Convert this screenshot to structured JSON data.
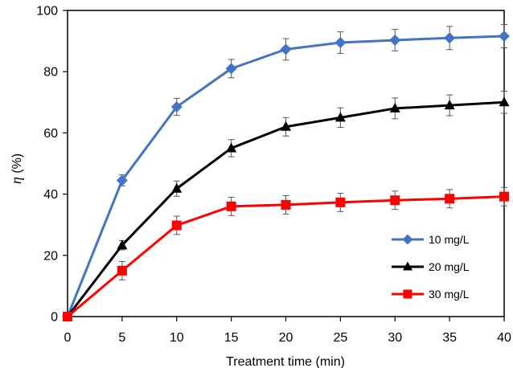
{
  "chart_data": {
    "type": "line",
    "xlabel": "Treatment time (min)",
    "ylabel_symbol": "η",
    "ylabel_unit": " (%)",
    "x": [
      0,
      5,
      10,
      15,
      20,
      25,
      30,
      35,
      40
    ],
    "xlim": [
      0,
      40
    ],
    "ylim": [
      0,
      100
    ],
    "x_ticks": [
      0,
      5,
      10,
      15,
      20,
      25,
      30,
      35,
      40
    ],
    "y_ticks": [
      0,
      20,
      40,
      60,
      80,
      100
    ],
    "grid": false,
    "legend_position": "lower-right",
    "series": [
      {
        "name": "10 mg/L",
        "color": "#4472C4",
        "marker": "diamond",
        "values": [
          0,
          44.5,
          68.5,
          81,
          87.3,
          89.5,
          90.3,
          91,
          91.6
        ],
        "errors": [
          0,
          1.8,
          2.8,
          3,
          3.5,
          3.5,
          3.5,
          3.8,
          3.8
        ]
      },
      {
        "name": "20 mg/L",
        "color": "#000000",
        "marker": "triangle",
        "values": [
          0,
          23.3,
          41.8,
          55,
          62,
          65,
          68,
          69,
          70
        ],
        "errors": [
          0,
          1.5,
          2.5,
          2.8,
          3,
          3.2,
          3.4,
          3.4,
          3.6
        ]
      },
      {
        "name": "30 mg/L",
        "color": "#FF0000",
        "marker": "square",
        "values": [
          0,
          15,
          29.8,
          36,
          36.5,
          37.3,
          38,
          38.5,
          39.2
        ],
        "errors": [
          0,
          3,
          3,
          3,
          3,
          3,
          3,
          3,
          3
        ]
      }
    ]
  }
}
